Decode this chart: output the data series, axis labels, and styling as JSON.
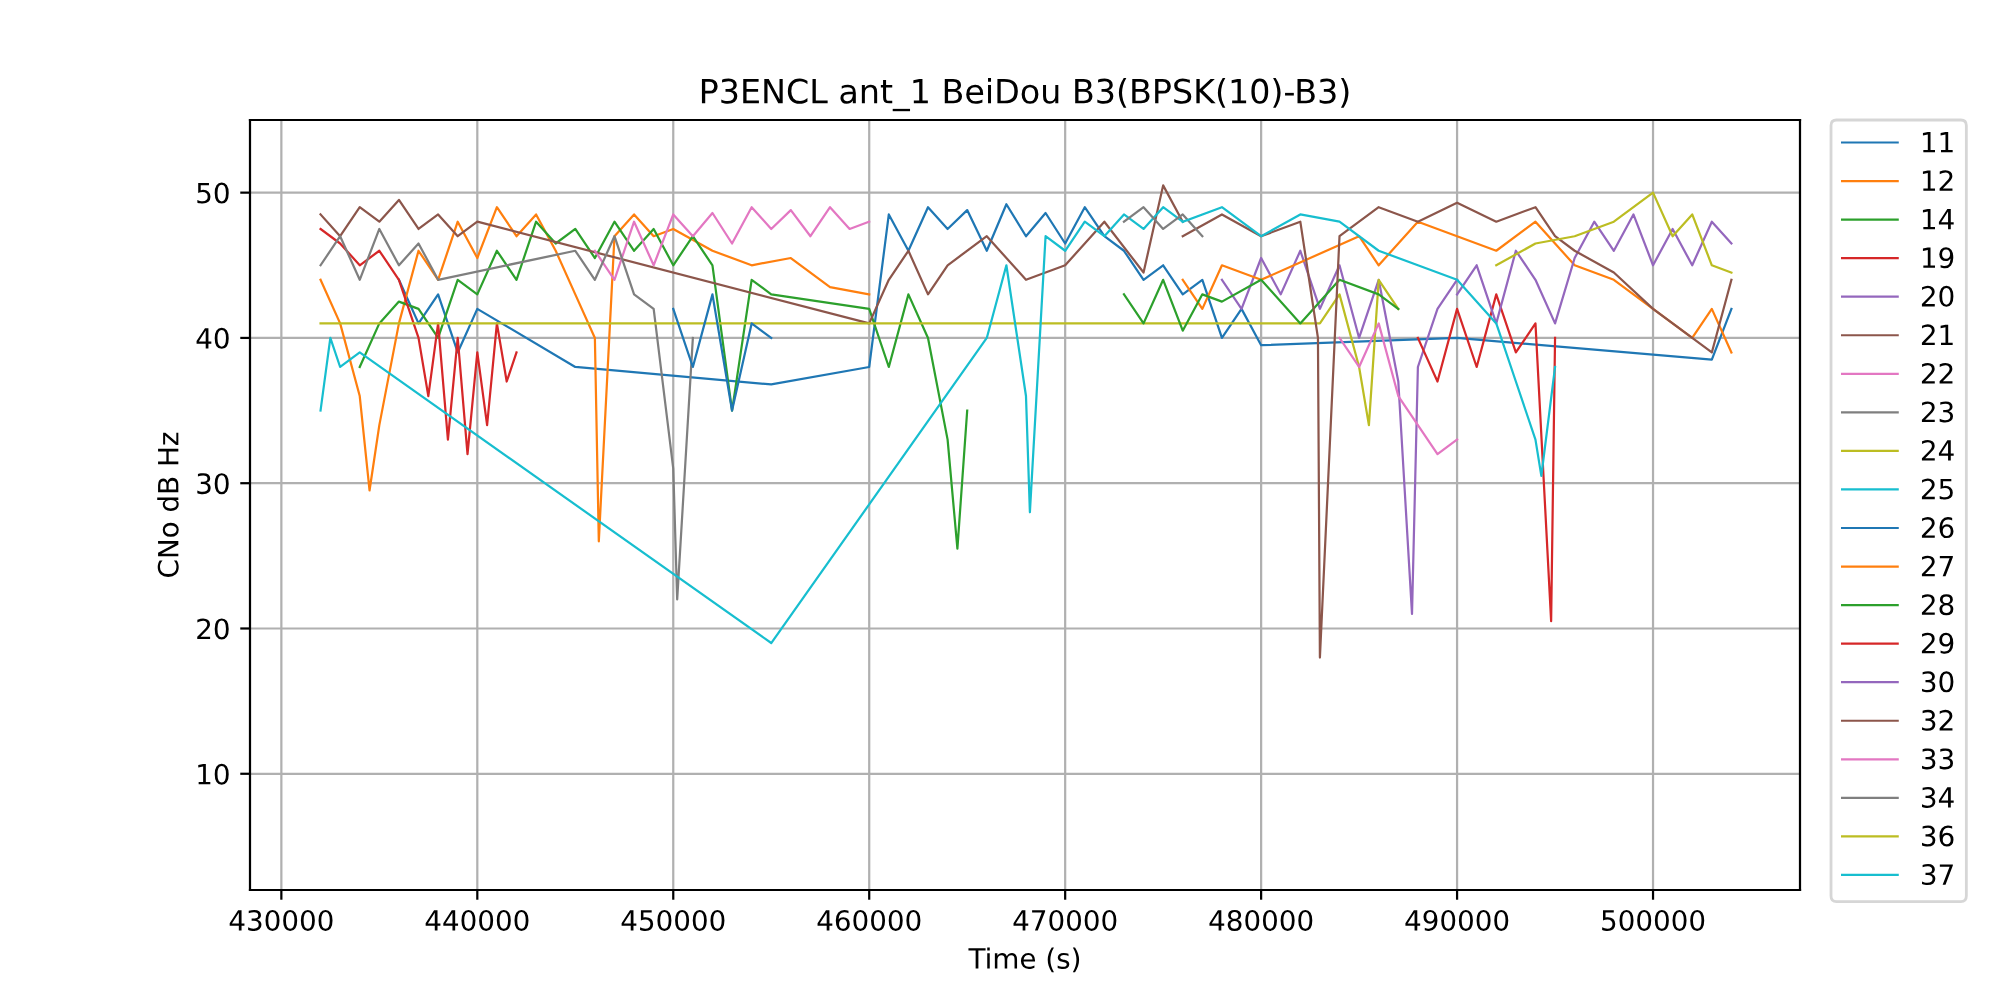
{
  "chart_data": {
    "type": "line",
    "title": "P3ENCL ant_1 BeiDou B3(BPSK(10)-B3)",
    "xlabel": "Time (s)",
    "ylabel": "CNo dB Hz",
    "xlim": [
      428400,
      507500
    ],
    "ylim": [
      2,
      55
    ],
    "xticks": [
      430000,
      440000,
      450000,
      460000,
      470000,
      480000,
      490000,
      500000
    ],
    "yticks": [
      10,
      20,
      30,
      40,
      50
    ],
    "grid": true,
    "legend": "right",
    "line_style": "solid",
    "marker": "none",
    "series": [
      {
        "name": "11",
        "color": "#1f77b4",
        "x": [
          436000,
          437000,
          438000,
          439000,
          440000,
          445000,
          455000,
          460000,
          461000,
          462000,
          463000,
          464000,
          465000,
          466000,
          467000,
          468000,
          469000,
          470000,
          471000,
          472000,
          473000,
          474000,
          475000,
          476000,
          477000,
          478000,
          479000,
          480000,
          490000,
          503000,
          504000
        ],
        "values": [
          44,
          41,
          43,
          39,
          42,
          38,
          36.8,
          38,
          48.5,
          46,
          49,
          47.5,
          48.8,
          46,
          49.2,
          47,
          48.6,
          46.5,
          49,
          47,
          46,
          44,
          45,
          43,
          44,
          40,
          42,
          39.5,
          40,
          38.5,
          42
        ]
      },
      {
        "name": "12",
        "color": "#ff7f0e",
        "x": [
          432000,
          433000,
          434000,
          434500,
          435000,
          436000,
          437000,
          438000,
          439000,
          440000,
          441000,
          442000,
          443000,
          444000,
          445000,
          446000,
          446200,
          447000,
          448000,
          449000,
          450000,
          452000,
          454000,
          456000,
          458000,
          460000
        ],
        "values": [
          44,
          41,
          36,
          29.5,
          34,
          41,
          46,
          44,
          48,
          45.5,
          49,
          47,
          48.5,
          46,
          43,
          40,
          26,
          47,
          48.5,
          47,
          47.5,
          46,
          45,
          45.5,
          43.5,
          43
        ]
      },
      {
        "name": "14",
        "color": "#2ca02c",
        "x": [
          434000,
          435000,
          436000,
          437000,
          438000,
          439000,
          440000,
          441000,
          442000,
          443000,
          444000,
          445000,
          446000,
          447000,
          448000,
          449000,
          450000,
          451000,
          452000,
          453000,
          454000,
          455000,
          460000,
          461000,
          462000,
          463000,
          464000,
          464500,
          465000
        ],
        "values": [
          38,
          41,
          42.5,
          42,
          40,
          44,
          43,
          46,
          44,
          48,
          46.5,
          47.5,
          45.5,
          48,
          46,
          47.5,
          45,
          47,
          45,
          35,
          44,
          43,
          42,
          38,
          43,
          40,
          33,
          25.5,
          35
        ]
      },
      {
        "name": "19",
        "color": "#d62728",
        "x": [
          432000,
          433000,
          434000,
          435000,
          436000,
          437000,
          437500,
          438000,
          438500,
          439000,
          439500,
          440000,
          440500,
          441000,
          441500,
          442000
        ],
        "values": [
          47.5,
          46.5,
          45,
          46,
          44,
          40,
          36,
          41,
          33,
          40,
          32,
          39,
          34,
          41,
          37,
          39
        ]
      },
      {
        "name": "20",
        "color": "#9467bd",
        "x": [
          478000,
          479000,
          480000,
          481000,
          482000,
          483000,
          484000,
          485000,
          486000,
          487000,
          487700,
          488000,
          489000,
          490000
        ],
        "values": [
          44,
          42,
          45.5,
          43,
          46,
          42,
          45,
          40,
          44,
          37,
          21,
          38,
          42,
          44
        ]
      },
      {
        "name": "21",
        "color": "#8c564b",
        "x": [
          432000,
          433000,
          434000,
          435000,
          436000,
          437000,
          438000,
          439000,
          440000,
          460000,
          461000,
          462000,
          463000,
          464000,
          466000,
          468000,
          470000,
          472000,
          474000,
          475000,
          476000
        ],
        "values": [
          48.5,
          47,
          49,
          48,
          49.5,
          47.5,
          48.5,
          47,
          48,
          41,
          44,
          46,
          43,
          45,
          47,
          44,
          45,
          48,
          44.5,
          50.5,
          48
        ]
      },
      {
        "name": "22",
        "color": "#e377c2",
        "x": [
          446000,
          447000,
          448000,
          449000,
          450000,
          451000,
          452000,
          453000,
          454000,
          455000,
          456000,
          457000,
          458000,
          459000,
          460000
        ],
        "values": [
          46,
          44,
          48,
          45,
          48.5,
          47,
          48.6,
          46.5,
          49,
          47.5,
          48.8,
          47,
          49,
          47.5,
          48
        ]
      },
      {
        "name": "23",
        "color": "#7f7f7f",
        "x": [
          432000,
          433000,
          434000,
          435000,
          436000,
          437000,
          438000,
          445000,
          446000,
          447000,
          448000,
          449000,
          450000,
          450200,
          451000
        ],
        "values": [
          45,
          47,
          44,
          47.5,
          45,
          46.5,
          44,
          46,
          44,
          47,
          43,
          42,
          31,
          22,
          40
        ]
      },
      {
        "name": "24",
        "color": "#bcbd22",
        "x": [
          432000,
          483000,
          484000,
          485000,
          485500,
          486000,
          487000
        ],
        "values": [
          41,
          41,
          43,
          38,
          34,
          44,
          42
        ]
      },
      {
        "name": "25",
        "color": "#17becf",
        "x": [
          432000,
          432500,
          433000,
          434000,
          455000,
          466000,
          467000,
          468000,
          468200,
          469000,
          470000,
          471000,
          472000,
          473000,
          474000,
          475000,
          476000
        ],
        "values": [
          35,
          40,
          38,
          39,
          19,
          40,
          45,
          36,
          28,
          47,
          46,
          48,
          47,
          48.5,
          47.5,
          49,
          48
        ]
      },
      {
        "name": "26",
        "color": "#1f77b4",
        "x": [
          450000,
          451000,
          452000,
          453000,
          454000,
          455000
        ],
        "values": [
          42,
          38,
          43,
          35,
          41,
          40
        ]
      },
      {
        "name": "27",
        "color": "#ff7f0e",
        "x": [
          476000,
          477000,
          478000,
          480000,
          485000,
          486000,
          488000,
          490000,
          492000,
          494000,
          496000,
          498000,
          500000,
          502000,
          503000,
          504000
        ],
        "values": [
          44,
          42,
          45,
          44,
          47,
          45,
          48,
          47,
          46,
          48,
          45,
          44,
          42,
          40,
          42,
          39
        ]
      },
      {
        "name": "28",
        "color": "#2ca02c",
        "x": [
          473000,
          474000,
          475000,
          476000,
          477000,
          478000,
          480000,
          482000,
          484000,
          486000,
          487000
        ],
        "values": [
          43,
          41,
          44,
          40.5,
          43,
          42.5,
          44,
          41,
          44,
          43,
          42
        ]
      },
      {
        "name": "29",
        "color": "#d62728",
        "x": [
          488000,
          489000,
          490000,
          491000,
          492000,
          493000,
          494000,
          494800,
          495000
        ],
        "values": [
          40,
          37,
          42,
          38,
          43,
          39,
          41,
          20.5,
          40
        ]
      },
      {
        "name": "30",
        "color": "#9467bd",
        "x": [
          490000,
          491000,
          492000,
          493000,
          494000,
          495000,
          496000,
          497000,
          498000,
          499000,
          500000,
          501000,
          502000,
          503000,
          504000
        ],
        "values": [
          43,
          45,
          41,
          46,
          44,
          41,
          45.5,
          48,
          46,
          48.5,
          45,
          47.5,
          45,
          48,
          46.5
        ]
      },
      {
        "name": "32",
        "color": "#8c564b",
        "x": [
          476000,
          478000,
          480000,
          482000,
          482900,
          483000,
          484000,
          486000,
          488000,
          490000,
          492000,
          494000,
          495000,
          496000,
          498000,
          500000,
          502000,
          503000,
          504000
        ],
        "values": [
          47,
          48.5,
          47,
          48,
          40,
          18,
          47,
          49,
          48,
          49.3,
          48,
          49,
          47,
          46,
          44.5,
          42,
          40,
          39,
          44
        ]
      },
      {
        "name": "33",
        "color": "#e377c2",
        "x": [
          484000,
          485000,
          486000,
          487000,
          488000,
          489000,
          490000
        ],
        "values": [
          40,
          38,
          41,
          36,
          34,
          32,
          33
        ]
      },
      {
        "name": "34",
        "color": "#7f7f7f",
        "x": [
          473000,
          474000,
          475000,
          476000,
          477000
        ],
        "values": [
          48,
          49,
          47.5,
          48.5,
          47
        ]
      },
      {
        "name": "36",
        "color": "#bcbd22",
        "x": [
          492000,
          494000,
          496000,
          498000,
          500000,
          501000,
          502000,
          503000,
          504000
        ],
        "values": [
          45,
          46.5,
          47,
          48,
          50,
          47,
          48.5,
          45,
          44.5
        ]
      },
      {
        "name": "37",
        "color": "#17becf",
        "x": [
          476000,
          478000,
          480000,
          482000,
          484000,
          486000,
          488000,
          490000,
          492000,
          493000,
          494000,
          494300,
          495000
        ],
        "values": [
          48,
          49,
          47,
          48.5,
          48,
          46,
          45,
          44,
          41,
          37,
          33,
          30.5,
          38
        ]
      }
    ]
  }
}
